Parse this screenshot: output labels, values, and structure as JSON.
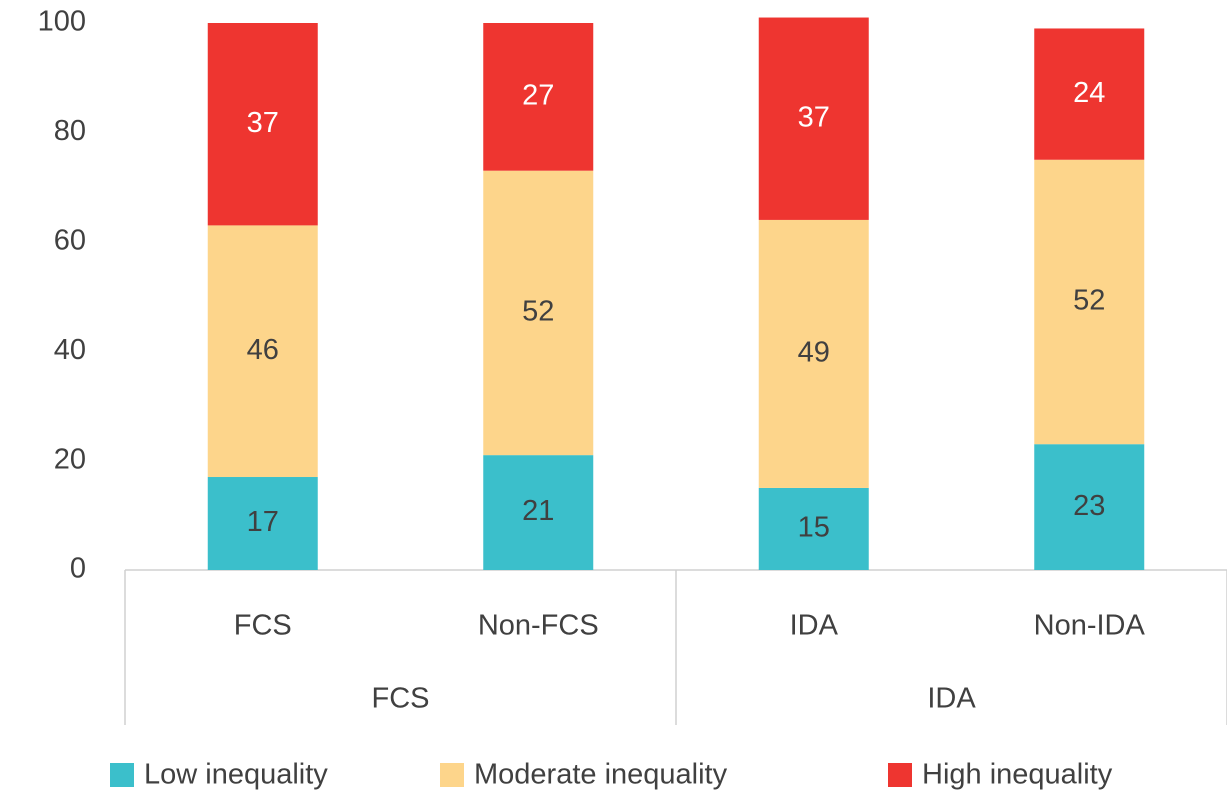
{
  "chart_data": {
    "type": "stacked_bar",
    "categories": [
      "FCS",
      "Non-FCS",
      "IDA",
      "Non-IDA"
    ],
    "groups": [
      "FCS",
      "IDA"
    ],
    "series": [
      {
        "name": "Low inequality",
        "color": "#3bbfcb",
        "values": [
          17,
          21,
          15,
          23
        ]
      },
      {
        "name": "Moderate inequality",
        "color": "#fdd58b",
        "values": [
          46,
          52,
          49,
          52
        ]
      },
      {
        "name": "High inequality",
        "color": "#ee3530",
        "values": [
          37,
          27,
          37,
          24
        ]
      }
    ],
    "ylim": [
      0,
      100
    ],
    "yticks": [
      0,
      20,
      40,
      60,
      80,
      100
    ],
    "grid": false,
    "legend": "bottom"
  }
}
